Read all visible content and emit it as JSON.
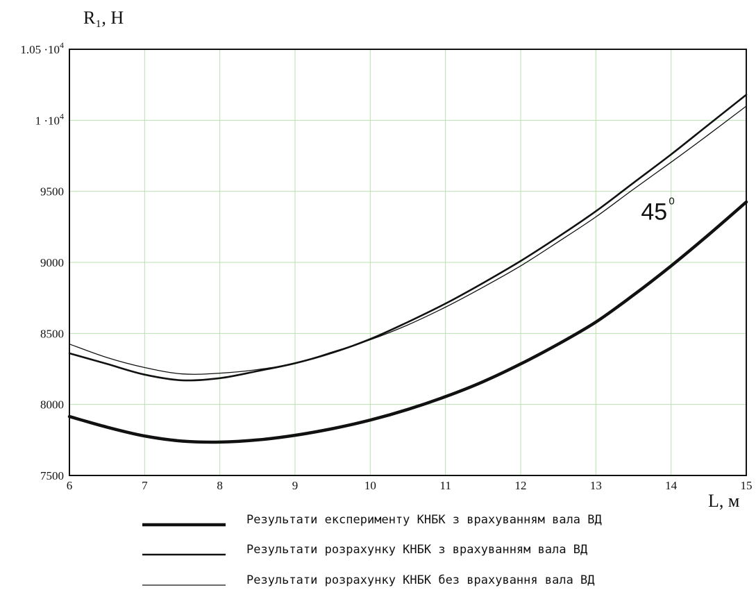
{
  "chart_data": {
    "type": "line",
    "title": "",
    "xlabel": "L, м",
    "ylabel": "R₁, Н",
    "xlim": [
      6,
      15
    ],
    "ylim": [
      7500,
      10500
    ],
    "x_ticks": [
      6,
      7,
      8,
      9,
      10,
      11,
      12,
      13,
      14,
      15
    ],
    "y_ticks": [
      {
        "value": 7500,
        "label": "7500"
      },
      {
        "value": 8000,
        "label": "8000"
      },
      {
        "value": 8500,
        "label": "8500"
      },
      {
        "value": 9000,
        "label": "9000"
      },
      {
        "value": 9500,
        "label": "9500"
      },
      {
        "value": 10000,
        "label": "1 ·10",
        "exp": "4"
      },
      {
        "value": 10500,
        "label": "1.05 ·10",
        "exp": "4"
      }
    ],
    "grid": true,
    "legend_position": "bottom",
    "annotation": {
      "text": "45",
      "sup": "0",
      "at": [
        13.6,
        9300
      ]
    },
    "series": [
      {
        "name": "Результати експерименту КНБК з врахуванням вала ВД",
        "stroke_width": 4.5,
        "x": [
          6,
          6.5,
          7,
          7.5,
          8,
          8.5,
          9,
          9.5,
          10,
          10.5,
          11,
          11.5,
          12,
          12.5,
          13,
          13.5,
          14,
          14.5,
          15
        ],
        "y": [
          7915,
          7840,
          7778,
          7742,
          7735,
          7750,
          7783,
          7830,
          7890,
          7965,
          8055,
          8160,
          8285,
          8425,
          8580,
          8770,
          8975,
          9195,
          9425
        ]
      },
      {
        "name": "Результати розрахунку  КНБК з врахуванням вала ВД",
        "stroke_width": 2.6,
        "x": [
          6,
          6.5,
          7,
          7.5,
          8,
          8.5,
          9,
          9.5,
          10,
          10.5,
          11,
          11.5,
          12,
          12.5,
          13,
          13.5,
          14,
          14.5,
          15
        ],
        "y": [
          8360,
          8285,
          8210,
          8170,
          8185,
          8235,
          8290,
          8365,
          8460,
          8580,
          8710,
          8855,
          9010,
          9180,
          9360,
          9560,
          9760,
          9970,
          10180
        ]
      },
      {
        "name": "Результати розрахунку  КНБК без врахування вала ВД",
        "stroke_width": 1.3,
        "x": [
          6,
          6.5,
          7,
          7.5,
          8,
          8.5,
          9,
          9.5,
          10,
          10.5,
          11,
          11.5,
          12,
          12.5,
          13,
          13.5,
          14,
          14.5,
          15
        ],
        "y": [
          8425,
          8330,
          8260,
          8215,
          8220,
          8245,
          8290,
          8370,
          8455,
          8560,
          8685,
          8825,
          8975,
          9145,
          9320,
          9515,
          9705,
          9900,
          10100
        ]
      }
    ]
  }
}
